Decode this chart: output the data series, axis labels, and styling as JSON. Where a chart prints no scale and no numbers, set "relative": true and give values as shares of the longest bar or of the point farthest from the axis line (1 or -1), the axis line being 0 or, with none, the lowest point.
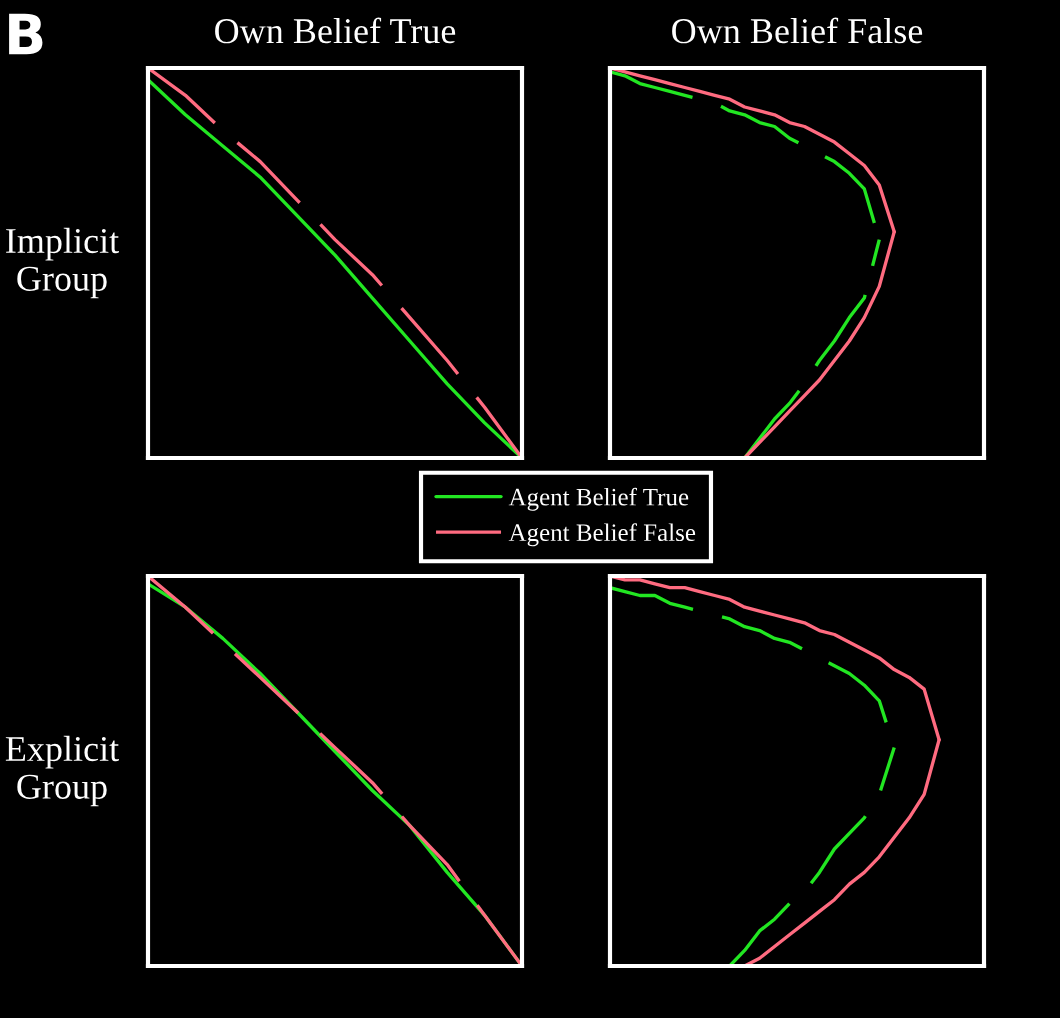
{
  "chart_data": [
    {
      "type": "line",
      "title": "Own Belief True",
      "ylabel": "Implicit\nGroup",
      "annotations": [
        "B"
      ],
      "relative": true,
      "tick_labels": false,
      "legend": "bottom",
      "categories": [
        null,
        null,
        null,
        null,
        null,
        null,
        null,
        null,
        null,
        null,
        null
      ],
      "series": [
        {
          "name": "Agent Belief True",
          "color": "#22e622",
          "line_style": "solid",
          "values": [
            0.97,
            0.88,
            0.8,
            0.72,
            0.62,
            0.52,
            0.41,
            0.3,
            0.19,
            0.09,
            0
          ]
        },
        {
          "name": "Agent Belief False",
          "color": "#ff6b80",
          "line_style": "dashed",
          "values": [
            1,
            0.93,
            0.84,
            0.76,
            0.66,
            0.56,
            0.47,
            0.36,
            0.25,
            0.13,
            0
          ]
        }
      ]
    },
    {
      "type": "line",
      "title": "Own Belief False",
      "relative": true,
      "tick_labels": false,
      "categories": [
        null,
        null,
        null,
        null,
        null,
        null,
        null,
        null,
        null,
        null,
        null,
        null,
        null,
        null,
        null,
        null,
        null,
        null,
        null,
        null,
        null,
        null,
        null,
        null,
        null,
        null
      ],
      "series": [
        {
          "color": "#22e622",
          "line_style": "dashed",
          "values": [
            0.99,
            0.98,
            0.96,
            0.95,
            0.94,
            0.93,
            0.92,
            0.91,
            0.89,
            0.88,
            0.86,
            0.85,
            0.82,
            0.8,
            0.78,
            0.76,
            0.73,
            0.69,
            0.56,
            null,
            null,
            null,
            null,
            null,
            null,
            null
          ]
        },
        {
          "color": "#22e622",
          "line_style": "dashed",
          "values": [
            null,
            null,
            null,
            null,
            null,
            null,
            null,
            null,
            null,
            0,
            0.05,
            0.1,
            0.14,
            0.19,
            0.25,
            0.3,
            0.36,
            0.41,
            0.56,
            null,
            null,
            null,
            null,
            null,
            null,
            null
          ]
        },
        {
          "color": "#ff6b80",
          "line_style": "solid",
          "values": [
            1,
            0.99,
            0.98,
            0.97,
            0.96,
            0.95,
            0.94,
            0.93,
            0.92,
            0.9,
            0.89,
            0.88,
            0.86,
            0.85,
            0.83,
            0.81,
            0.78,
            0.75,
            0.7,
            0.58,
            null,
            null,
            null,
            null,
            null,
            null
          ]
        },
        {
          "color": "#ff6b80",
          "line_style": "solid",
          "values": [
            null,
            null,
            null,
            null,
            null,
            null,
            null,
            null,
            null,
            0,
            0.04,
            0.08,
            0.12,
            0.16,
            0.2,
            0.25,
            0.3,
            0.36,
            0.44,
            0.58,
            null,
            null,
            null,
            null,
            null,
            null
          ]
        }
      ]
    },
    {
      "type": "line",
      "ylabel": "Explicit\nGroup",
      "relative": true,
      "tick_labels": false,
      "categories": [
        null,
        null,
        null,
        null,
        null,
        null,
        null,
        null,
        null,
        null,
        null
      ],
      "series": [
        {
          "color": "#22e622",
          "line_style": "solid",
          "values": [
            0.98,
            0.92,
            0.84,
            0.75,
            0.65,
            0.55,
            0.45,
            0.36,
            0.24,
            0.13,
            0
          ]
        },
        {
          "color": "#ff6b80",
          "line_style": "dashed",
          "values": [
            1,
            0.92,
            0.83,
            0.74,
            0.65,
            0.56,
            0.47,
            0.36,
            0.26,
            0.13,
            0
          ]
        }
      ]
    },
    {
      "type": "line",
      "relative": true,
      "tick_labels": false,
      "categories": [
        null,
        null,
        null,
        null,
        null,
        null,
        null,
        null,
        null,
        null,
        null,
        null,
        null,
        null,
        null,
        null,
        null,
        null,
        null,
        null,
        null,
        null,
        null,
        null,
        null,
        null
      ],
      "series": [
        {
          "color": "#22e622",
          "line_style": "dashed",
          "values": [
            0.97,
            0.96,
            0.95,
            0.95,
            0.93,
            0.92,
            0.91,
            0.9,
            0.89,
            0.87,
            0.86,
            0.84,
            0.83,
            0.81,
            0.79,
            0.77,
            0.75,
            0.72,
            0.68,
            0.56,
            null,
            null,
            null,
            null,
            null,
            null
          ]
        },
        {
          "color": "#22e622",
          "line_style": "dashed",
          "values": [
            null,
            null,
            null,
            null,
            null,
            null,
            null,
            null,
            0,
            0.04,
            0.09,
            0.12,
            0.16,
            0.19,
            0.24,
            0.3,
            0.34,
            0.38,
            0.44,
            0.56,
            null,
            null,
            null,
            null,
            null,
            null
          ]
        },
        {
          "color": "#ff6b80",
          "line_style": "solid",
          "values": [
            1,
            0.99,
            0.99,
            0.98,
            0.97,
            0.97,
            0.96,
            0.95,
            0.94,
            0.92,
            0.91,
            0.9,
            0.89,
            0.88,
            0.86,
            0.85,
            0.83,
            0.81,
            0.79,
            0.76,
            0.74,
            0.71,
            0.58,
            null,
            null,
            null
          ]
        },
        {
          "color": "#ff6b80",
          "line_style": "solid",
          "values": [
            null,
            null,
            null,
            null,
            null,
            null,
            null,
            null,
            null,
            0,
            0.02,
            0.05,
            0.08,
            0.11,
            0.14,
            0.17,
            0.21,
            0.24,
            0.28,
            0.33,
            0.38,
            0.44,
            0.58,
            null,
            null,
            null
          ]
        }
      ]
    }
  ]
}
